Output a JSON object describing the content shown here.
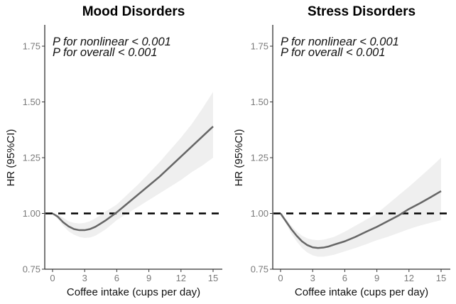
{
  "chart_data": [
    {
      "type": "line",
      "title": "Mood Disorders",
      "xlabel": "Coffee intake (cups per day)",
      "ylabel": "HR (95%CI)",
      "xlim": [
        0,
        15
      ],
      "ylim": [
        0.75,
        1.85
      ],
      "xticks": [
        "0",
        "3",
        "6",
        "9",
        "12",
        "15"
      ],
      "yticks": [
        "0.75",
        "1.00",
        "1.25",
        "1.50",
        "1.75"
      ],
      "annotations": [
        "P for nonlinear < 0.001",
        "P for overall < 0.001"
      ],
      "reference_line": 1.0,
      "grid": false,
      "x": [
        0,
        0.5,
        1,
        1.5,
        2,
        2.5,
        3,
        3.5,
        4,
        4.5,
        5,
        6,
        7,
        8,
        9,
        10,
        11,
        12,
        13,
        14,
        15
      ],
      "hr": [
        1.0,
        0.985,
        0.96,
        0.942,
        0.93,
        0.925,
        0.925,
        0.93,
        0.94,
        0.955,
        0.97,
        1.005,
        1.045,
        1.085,
        1.125,
        1.165,
        1.21,
        1.255,
        1.3,
        1.345,
        1.39
      ],
      "lower": [
        1.0,
        0.975,
        0.945,
        0.92,
        0.905,
        0.895,
        0.89,
        0.892,
        0.9,
        0.915,
        0.93,
        0.97,
        1.0,
        1.03,
        1.06,
        1.09,
        1.12,
        1.15,
        1.185,
        1.215,
        1.25
      ],
      "upper": [
        1.0,
        0.995,
        0.98,
        0.965,
        0.958,
        0.955,
        0.958,
        0.965,
        0.978,
        0.993,
        1.01,
        1.04,
        1.085,
        1.13,
        1.18,
        1.23,
        1.285,
        1.34,
        1.4,
        1.47,
        1.545
      ],
      "colors": {
        "line": "#666666",
        "band": "#efefef",
        "reference": "#000000"
      }
    },
    {
      "type": "line",
      "title": "Stress Disorders",
      "xlabel": "Coffee intake (cups per day)",
      "ylabel": "HR (95%CI)",
      "xlim": [
        0,
        15
      ],
      "ylim": [
        0.75,
        1.85
      ],
      "xticks": [
        "0",
        "3",
        "6",
        "9",
        "12",
        "15"
      ],
      "yticks": [
        "0.75",
        "1.00",
        "1.25",
        "1.50",
        "1.75"
      ],
      "annotations": [
        "P for nonlinear < 0.001",
        "P for overall < 0.001"
      ],
      "reference_line": 1.0,
      "grid": false,
      "x": [
        0,
        0.5,
        1,
        1.5,
        2,
        2.5,
        3,
        3.5,
        4,
        4.5,
        5,
        6,
        7,
        8,
        9,
        10,
        11,
        12,
        13,
        14,
        15
      ],
      "hr": [
        1.0,
        0.965,
        0.93,
        0.9,
        0.875,
        0.858,
        0.848,
        0.845,
        0.847,
        0.852,
        0.86,
        0.875,
        0.895,
        0.918,
        0.94,
        0.965,
        0.99,
        1.02,
        1.045,
        1.072,
        1.1
      ],
      "lower": [
        1.0,
        0.955,
        0.91,
        0.875,
        0.845,
        0.825,
        0.812,
        0.806,
        0.806,
        0.81,
        0.815,
        0.83,
        0.845,
        0.862,
        0.88,
        0.895,
        0.912,
        0.93,
        0.945,
        0.958,
        0.97
      ],
      "upper": [
        1.0,
        0.975,
        0.945,
        0.92,
        0.9,
        0.888,
        0.882,
        0.88,
        0.882,
        0.888,
        0.895,
        0.918,
        0.945,
        0.972,
        1.0,
        1.04,
        1.08,
        1.12,
        1.162,
        1.205,
        1.25
      ],
      "colors": {
        "line": "#666666",
        "band": "#efefef",
        "reference": "#000000"
      }
    }
  ]
}
